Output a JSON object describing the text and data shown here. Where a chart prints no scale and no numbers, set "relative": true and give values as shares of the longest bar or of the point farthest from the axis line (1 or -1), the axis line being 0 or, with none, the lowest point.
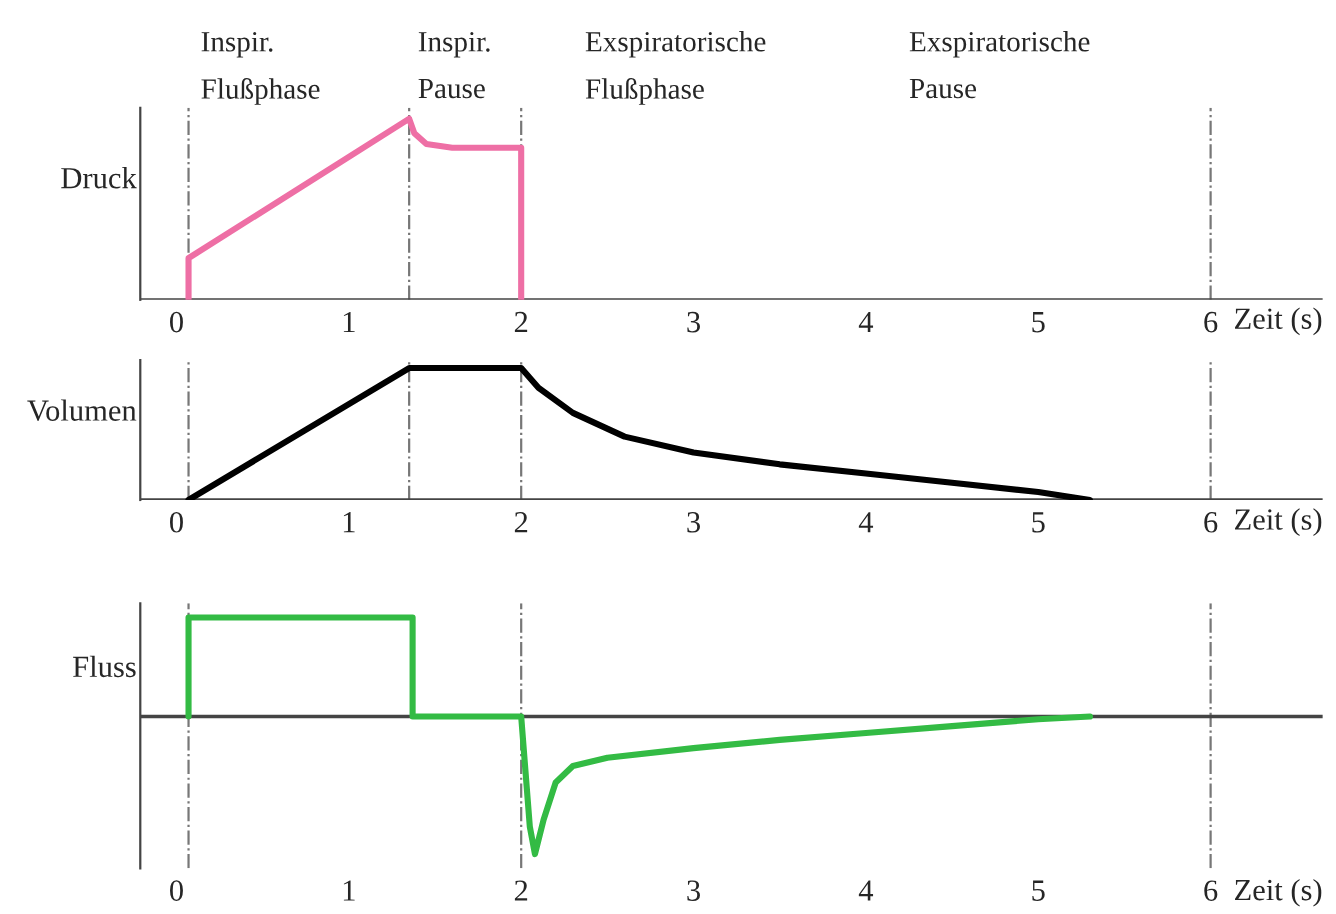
{
  "chart_data": [
    {
      "type": "line",
      "relative": true,
      "ylabel": "Druck",
      "xlabel": "Zeit (s)",
      "xlim": [
        -0.21,
        6.65
      ],
      "xticks": [
        0,
        1,
        2,
        3,
        4,
        5,
        6
      ],
      "grid": false,
      "annotations": [
        "Inspir.\nFlußphase",
        "Inspir.\nPause",
        "Exspiratorische\nFlußphase",
        "Exspiratorische\nPause"
      ],
      "ref_lines": [
        {
          "axis": "x",
          "value": 0.07,
          "color": "#777777"
        },
        {
          "axis": "x",
          "value": 1.35,
          "color": "#777777"
        },
        {
          "axis": "x",
          "value": 2.0,
          "color": "#777777"
        },
        {
          "axis": "x",
          "value": 6.0,
          "color": "#777777"
        }
      ],
      "series": [
        {
          "color": "#ee6fa5",
          "x": [
            0.07,
            0.07,
            1.35,
            1.38,
            1.45,
            1.6,
            2.0,
            2.0
          ],
          "values": [
            0,
            0.23,
            1.0,
            0.92,
            0.86,
            0.84,
            0.84,
            0
          ]
        }
      ]
    },
    {
      "type": "line",
      "relative": true,
      "ylabel": "Volumen",
      "xlabel": "Zeit (s)",
      "xlim": [
        -0.21,
        6.65
      ],
      "xticks": [
        0,
        1,
        2,
        3,
        4,
        5,
        6
      ],
      "grid": false,
      "ref_lines": [
        {
          "axis": "x",
          "value": 0.07,
          "color": "#777777"
        },
        {
          "axis": "x",
          "value": 1.35,
          "color": "#777777"
        },
        {
          "axis": "x",
          "value": 2.0,
          "color": "#777777"
        },
        {
          "axis": "x",
          "value": 6.0,
          "color": "#777777"
        }
      ],
      "series": [
        {
          "color": "#000000",
          "x": [
            0.07,
            1.35,
            2.0,
            2.1,
            2.3,
            2.6,
            3.0,
            3.5,
            4.0,
            4.5,
            5.0,
            5.3
          ],
          "values": [
            0,
            1.0,
            1.0,
            0.85,
            0.66,
            0.48,
            0.36,
            0.27,
            0.2,
            0.13,
            0.06,
            0
          ]
        }
      ]
    },
    {
      "type": "line",
      "relative": true,
      "ylabel": "Fluss",
      "xlabel": "Zeit (s)",
      "xlim": [
        -0.21,
        6.65
      ],
      "xticks": [
        0,
        1,
        2,
        3,
        4,
        5,
        6
      ],
      "grid": false,
      "ref_lines": [
        {
          "axis": "x",
          "value": 0.07,
          "color": "#777777"
        },
        {
          "axis": "x",
          "value": 2.0,
          "color": "#777777"
        },
        {
          "axis": "x",
          "value": 6.0,
          "color": "#777777"
        }
      ],
      "series": [
        {
          "color": "#33bb44",
          "x": [
            0.07,
            0.07,
            1.37,
            1.37,
            2.0,
            2.0,
            2.05,
            2.08,
            2.13,
            2.2,
            2.3,
            2.5,
            3.0,
            3.5,
            4.0,
            4.5,
            5.0,
            5.3
          ],
          "values": [
            0,
            0.72,
            0.72,
            0,
            0,
            0,
            -0.8,
            -1.0,
            -0.75,
            -0.48,
            -0.36,
            -0.3,
            -0.23,
            -0.17,
            -0.12,
            -0.07,
            -0.02,
            0
          ]
        }
      ]
    }
  ]
}
